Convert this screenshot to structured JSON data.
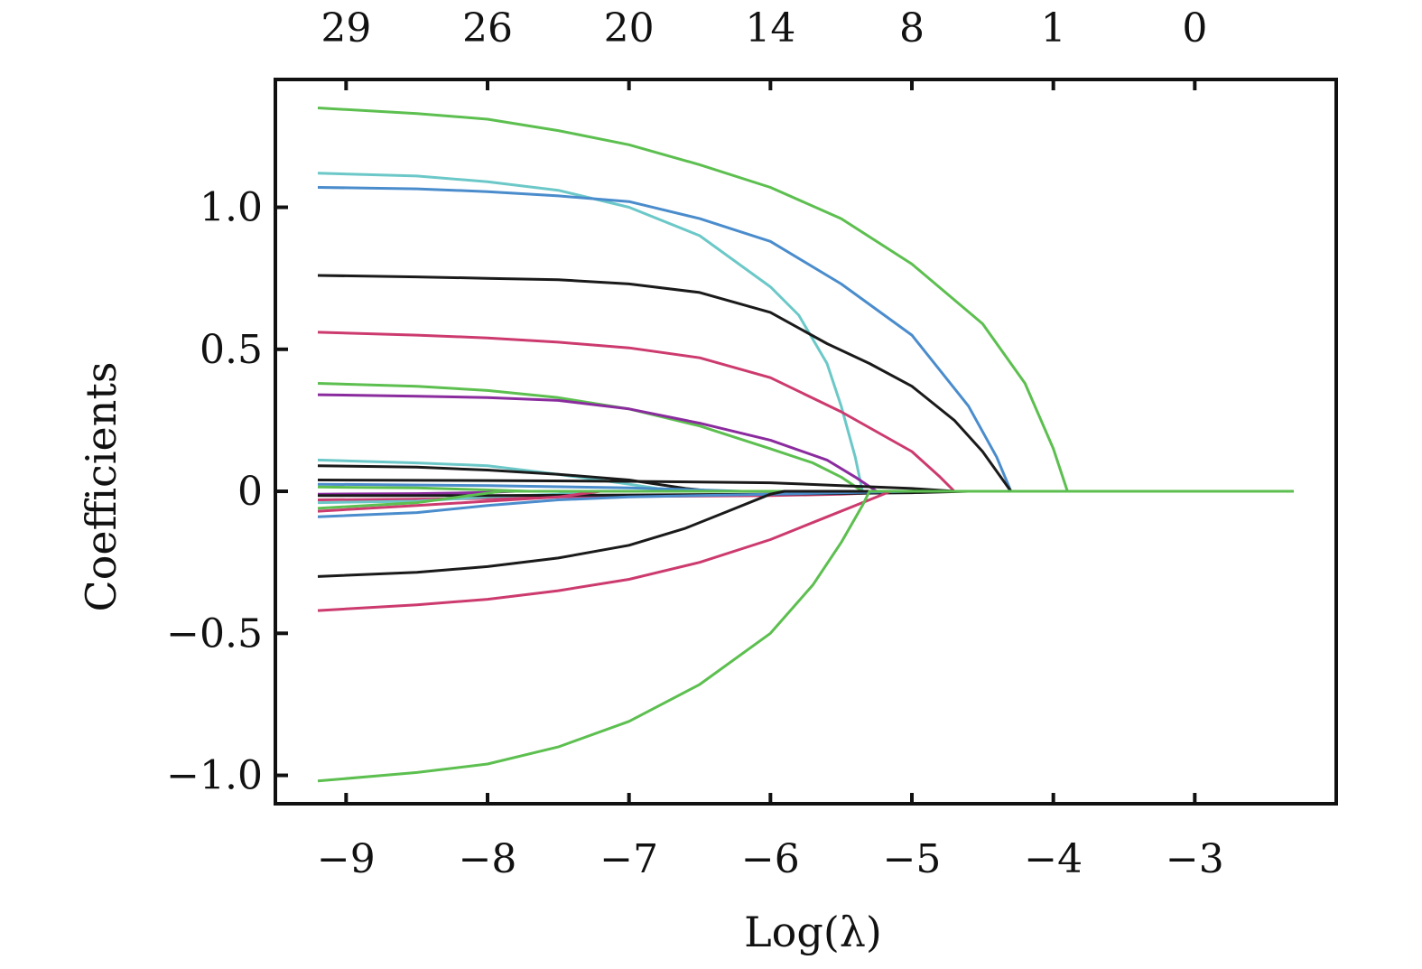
{
  "chart_data": {
    "type": "line",
    "xlabel": "Log(λ)",
    "ylabel": "Coefficients",
    "xlim": [
      -9.5,
      -2.0
    ],
    "ylim": [
      -1.1,
      1.45
    ],
    "x_ticks": [
      -9,
      -8,
      -7,
      -6,
      -5,
      -4,
      -3
    ],
    "x_tick_labels": [
      "−9",
      "−8",
      "−7",
      "−6",
      "−5",
      "−4",
      "−3"
    ],
    "y_ticks": [
      -1.0,
      -0.5,
      0,
      0.5,
      1.0
    ],
    "y_tick_labels": [
      "−1.0",
      "−0.5",
      "0",
      "0.5",
      "1.0"
    ],
    "top_axis_ticks": [
      -9,
      -8,
      -7,
      -6,
      -5,
      -4,
      -3
    ],
    "top_axis_labels": [
      "29",
      "26",
      "20",
      "14",
      "8",
      "1",
      "0"
    ],
    "grid": false,
    "legend": "none",
    "series": [
      {
        "color": "#5cbf4f",
        "points": [
          [
            -9.2,
            1.35
          ],
          [
            -8.5,
            1.33
          ],
          [
            -8.0,
            1.31
          ],
          [
            -7.5,
            1.27
          ],
          [
            -7.0,
            1.22
          ],
          [
            -6.5,
            1.15
          ],
          [
            -6.0,
            1.07
          ],
          [
            -5.5,
            0.96
          ],
          [
            -5.0,
            0.8
          ],
          [
            -4.5,
            0.59
          ],
          [
            -4.2,
            0.38
          ],
          [
            -4.0,
            0.15
          ],
          [
            -3.9,
            0.0
          ],
          [
            -2.3,
            0.0
          ]
        ]
      },
      {
        "color": "#6cc8c8",
        "points": [
          [
            -9.2,
            1.12
          ],
          [
            -8.5,
            1.11
          ],
          [
            -8.0,
            1.09
          ],
          [
            -7.5,
            1.06
          ],
          [
            -7.0,
            1.0
          ],
          [
            -6.5,
            0.9
          ],
          [
            -6.0,
            0.72
          ],
          [
            -5.8,
            0.62
          ],
          [
            -5.6,
            0.45
          ],
          [
            -5.5,
            0.3
          ],
          [
            -5.4,
            0.12
          ],
          [
            -5.35,
            0.0
          ],
          [
            -2.3,
            0.0
          ]
        ]
      },
      {
        "color": "#4a8ccc",
        "points": [
          [
            -9.2,
            1.07
          ],
          [
            -8.5,
            1.065
          ],
          [
            -8.0,
            1.055
          ],
          [
            -7.5,
            1.04
          ],
          [
            -7.0,
            1.02
          ],
          [
            -6.5,
            0.96
          ],
          [
            -6.0,
            0.88
          ],
          [
            -5.5,
            0.73
          ],
          [
            -5.0,
            0.55
          ],
          [
            -4.6,
            0.3
          ],
          [
            -4.4,
            0.12
          ],
          [
            -4.3,
            0.0
          ],
          [
            -2.3,
            0.0
          ]
        ]
      },
      {
        "color": "#1a1a1a",
        "points": [
          [
            -9.2,
            0.76
          ],
          [
            -8.5,
            0.755
          ],
          [
            -8.0,
            0.75
          ],
          [
            -7.5,
            0.745
          ],
          [
            -7.0,
            0.73
          ],
          [
            -6.5,
            0.7
          ],
          [
            -6.0,
            0.63
          ],
          [
            -5.6,
            0.52
          ],
          [
            -5.3,
            0.45
          ],
          [
            -5.0,
            0.37
          ],
          [
            -4.7,
            0.25
          ],
          [
            -4.5,
            0.14
          ],
          [
            -4.3,
            0.0
          ],
          [
            -2.3,
            0.0
          ]
        ]
      },
      {
        "color": "#cc3a6e",
        "points": [
          [
            -9.2,
            0.56
          ],
          [
            -8.5,
            0.55
          ],
          [
            -8.0,
            0.54
          ],
          [
            -7.5,
            0.525
          ],
          [
            -7.0,
            0.505
          ],
          [
            -6.5,
            0.47
          ],
          [
            -6.0,
            0.4
          ],
          [
            -5.5,
            0.28
          ],
          [
            -5.0,
            0.14
          ],
          [
            -4.8,
            0.05
          ],
          [
            -4.7,
            0.0
          ],
          [
            -2.3,
            0.0
          ]
        ]
      },
      {
        "color": "#5cbf4f",
        "points": [
          [
            -9.2,
            0.38
          ],
          [
            -8.5,
            0.37
          ],
          [
            -8.0,
            0.355
          ],
          [
            -7.5,
            0.33
          ],
          [
            -7.0,
            0.29
          ],
          [
            -6.5,
            0.23
          ],
          [
            -6.0,
            0.15
          ],
          [
            -5.7,
            0.1
          ],
          [
            -5.5,
            0.05
          ],
          [
            -5.35,
            0.0
          ],
          [
            -2.3,
            0.0
          ]
        ]
      },
      {
        "color": "#8a2b9e",
        "points": [
          [
            -9.2,
            0.34
          ],
          [
            -8.5,
            0.335
          ],
          [
            -8.0,
            0.33
          ],
          [
            -7.5,
            0.32
          ],
          [
            -7.0,
            0.29
          ],
          [
            -6.5,
            0.24
          ],
          [
            -6.0,
            0.18
          ],
          [
            -5.6,
            0.11
          ],
          [
            -5.4,
            0.05
          ],
          [
            -5.25,
            0.0
          ],
          [
            -2.3,
            0.0
          ]
        ]
      },
      {
        "color": "#6cc8c8",
        "points": [
          [
            -9.2,
            0.11
          ],
          [
            -8.5,
            0.1
          ],
          [
            -8.0,
            0.09
          ],
          [
            -7.5,
            0.06
          ],
          [
            -7.0,
            0.025
          ],
          [
            -6.8,
            0.01
          ],
          [
            -6.5,
            0.0
          ],
          [
            -2.3,
            0.0
          ]
        ]
      },
      {
        "color": "#1a1a1a",
        "points": [
          [
            -9.2,
            0.09
          ],
          [
            -8.5,
            0.085
          ],
          [
            -8.0,
            0.075
          ],
          [
            -7.5,
            0.06
          ],
          [
            -7.0,
            0.04
          ],
          [
            -6.6,
            0.01
          ],
          [
            -6.4,
            0.0
          ],
          [
            -2.3,
            0.0
          ]
        ]
      },
      {
        "color": "#1a1a1a",
        "points": [
          [
            -9.2,
            0.04
          ],
          [
            -8.0,
            0.038
          ],
          [
            -7.0,
            0.035
          ],
          [
            -6.0,
            0.03
          ],
          [
            -5.5,
            0.02
          ],
          [
            -5.0,
            0.01
          ],
          [
            -4.7,
            0.0
          ],
          [
            -2.3,
            0.0
          ]
        ]
      },
      {
        "color": "#4a8ccc",
        "points": [
          [
            -9.2,
            0.025
          ],
          [
            -8.0,
            0.02
          ],
          [
            -7.0,
            0.012
          ],
          [
            -6.5,
            0.005
          ],
          [
            -6.2,
            0.0
          ],
          [
            -2.3,
            0.0
          ]
        ]
      },
      {
        "color": "#5cbf4f",
        "points": [
          [
            -9.2,
            0.015
          ],
          [
            -8.5,
            0.012
          ],
          [
            -8.0,
            0.005
          ],
          [
            -7.7,
            0.0
          ],
          [
            -2.3,
            0.0
          ]
        ]
      },
      {
        "color": "#8a2b9e",
        "points": [
          [
            -9.2,
            -0.01
          ],
          [
            -8.5,
            -0.008
          ],
          [
            -8.0,
            -0.004
          ],
          [
            -7.8,
            0.0
          ],
          [
            -2.3,
            0.0
          ]
        ]
      },
      {
        "color": "#cc3a6e",
        "points": [
          [
            -9.2,
            -0.03
          ],
          [
            -8.5,
            -0.028
          ],
          [
            -8.0,
            -0.025
          ],
          [
            -7.5,
            -0.02
          ],
          [
            -7.0,
            -0.018
          ],
          [
            -6.0,
            -0.015
          ],
          [
            -5.5,
            -0.01
          ],
          [
            -5.0,
            0.0
          ],
          [
            -2.3,
            0.0
          ]
        ]
      },
      {
        "color": "#6cc8c8",
        "points": [
          [
            -9.2,
            -0.04
          ],
          [
            -8.5,
            -0.035
          ],
          [
            -8.0,
            -0.02
          ],
          [
            -7.5,
            -0.01
          ],
          [
            -7.3,
            0.0
          ],
          [
            -2.3,
            0.0
          ]
        ]
      },
      {
        "color": "#1a1a1a",
        "points": [
          [
            -9.2,
            -0.015
          ],
          [
            -8.0,
            -0.015
          ],
          [
            -7.0,
            -0.013
          ],
          [
            -6.0,
            -0.01
          ],
          [
            -5.0,
            -0.005
          ],
          [
            -4.6,
            0.0
          ],
          [
            -2.3,
            0.0
          ]
        ]
      },
      {
        "color": "#cc3a6e",
        "points": [
          [
            -9.2,
            -0.07
          ],
          [
            -8.5,
            -0.05
          ],
          [
            -8.0,
            -0.035
          ],
          [
            -7.5,
            -0.02
          ],
          [
            -7.2,
            0.0
          ],
          [
            -2.3,
            0.0
          ]
        ]
      },
      {
        "color": "#5cbf4f",
        "points": [
          [
            -9.2,
            -0.06
          ],
          [
            -8.5,
            -0.04
          ],
          [
            -8.2,
            -0.02
          ],
          [
            -7.9,
            0.0
          ],
          [
            -2.3,
            0.0
          ]
        ]
      },
      {
        "color": "#4a8ccc",
        "points": [
          [
            -9.2,
            -0.09
          ],
          [
            -8.5,
            -0.075
          ],
          [
            -8.0,
            -0.05
          ],
          [
            -7.5,
            -0.03
          ],
          [
            -7.0,
            -0.02
          ],
          [
            -6.5,
            -0.015
          ],
          [
            -6.0,
            -0.01
          ],
          [
            -5.5,
            -0.005
          ],
          [
            -5.0,
            0.0
          ],
          [
            -2.3,
            0.0
          ]
        ]
      },
      {
        "color": "#1a1a1a",
        "points": [
          [
            -9.2,
            -0.3
          ],
          [
            -8.5,
            -0.285
          ],
          [
            -8.0,
            -0.265
          ],
          [
            -7.5,
            -0.235
          ],
          [
            -7.0,
            -0.19
          ],
          [
            -6.6,
            -0.13
          ],
          [
            -6.3,
            -0.07
          ],
          [
            -6.0,
            -0.01
          ],
          [
            -5.9,
            0.0
          ],
          [
            -2.3,
            0.0
          ]
        ]
      },
      {
        "color": "#cc3a6e",
        "points": [
          [
            -9.2,
            -0.42
          ],
          [
            -8.5,
            -0.4
          ],
          [
            -8.0,
            -0.38
          ],
          [
            -7.5,
            -0.35
          ],
          [
            -7.0,
            -0.31
          ],
          [
            -6.5,
            -0.25
          ],
          [
            -6.0,
            -0.17
          ],
          [
            -5.6,
            -0.09
          ],
          [
            -5.3,
            -0.03
          ],
          [
            -5.15,
            0.0
          ],
          [
            -2.3,
            0.0
          ]
        ]
      },
      {
        "color": "#5cbf4f",
        "points": [
          [
            -9.2,
            -1.02
          ],
          [
            -8.5,
            -0.99
          ],
          [
            -8.0,
            -0.96
          ],
          [
            -7.5,
            -0.9
          ],
          [
            -7.0,
            -0.81
          ],
          [
            -6.5,
            -0.68
          ],
          [
            -6.0,
            -0.5
          ],
          [
            -5.7,
            -0.33
          ],
          [
            -5.5,
            -0.18
          ],
          [
            -5.35,
            -0.05
          ],
          [
            -5.3,
            0.0
          ],
          [
            -2.3,
            0.0
          ]
        ]
      }
    ]
  }
}
